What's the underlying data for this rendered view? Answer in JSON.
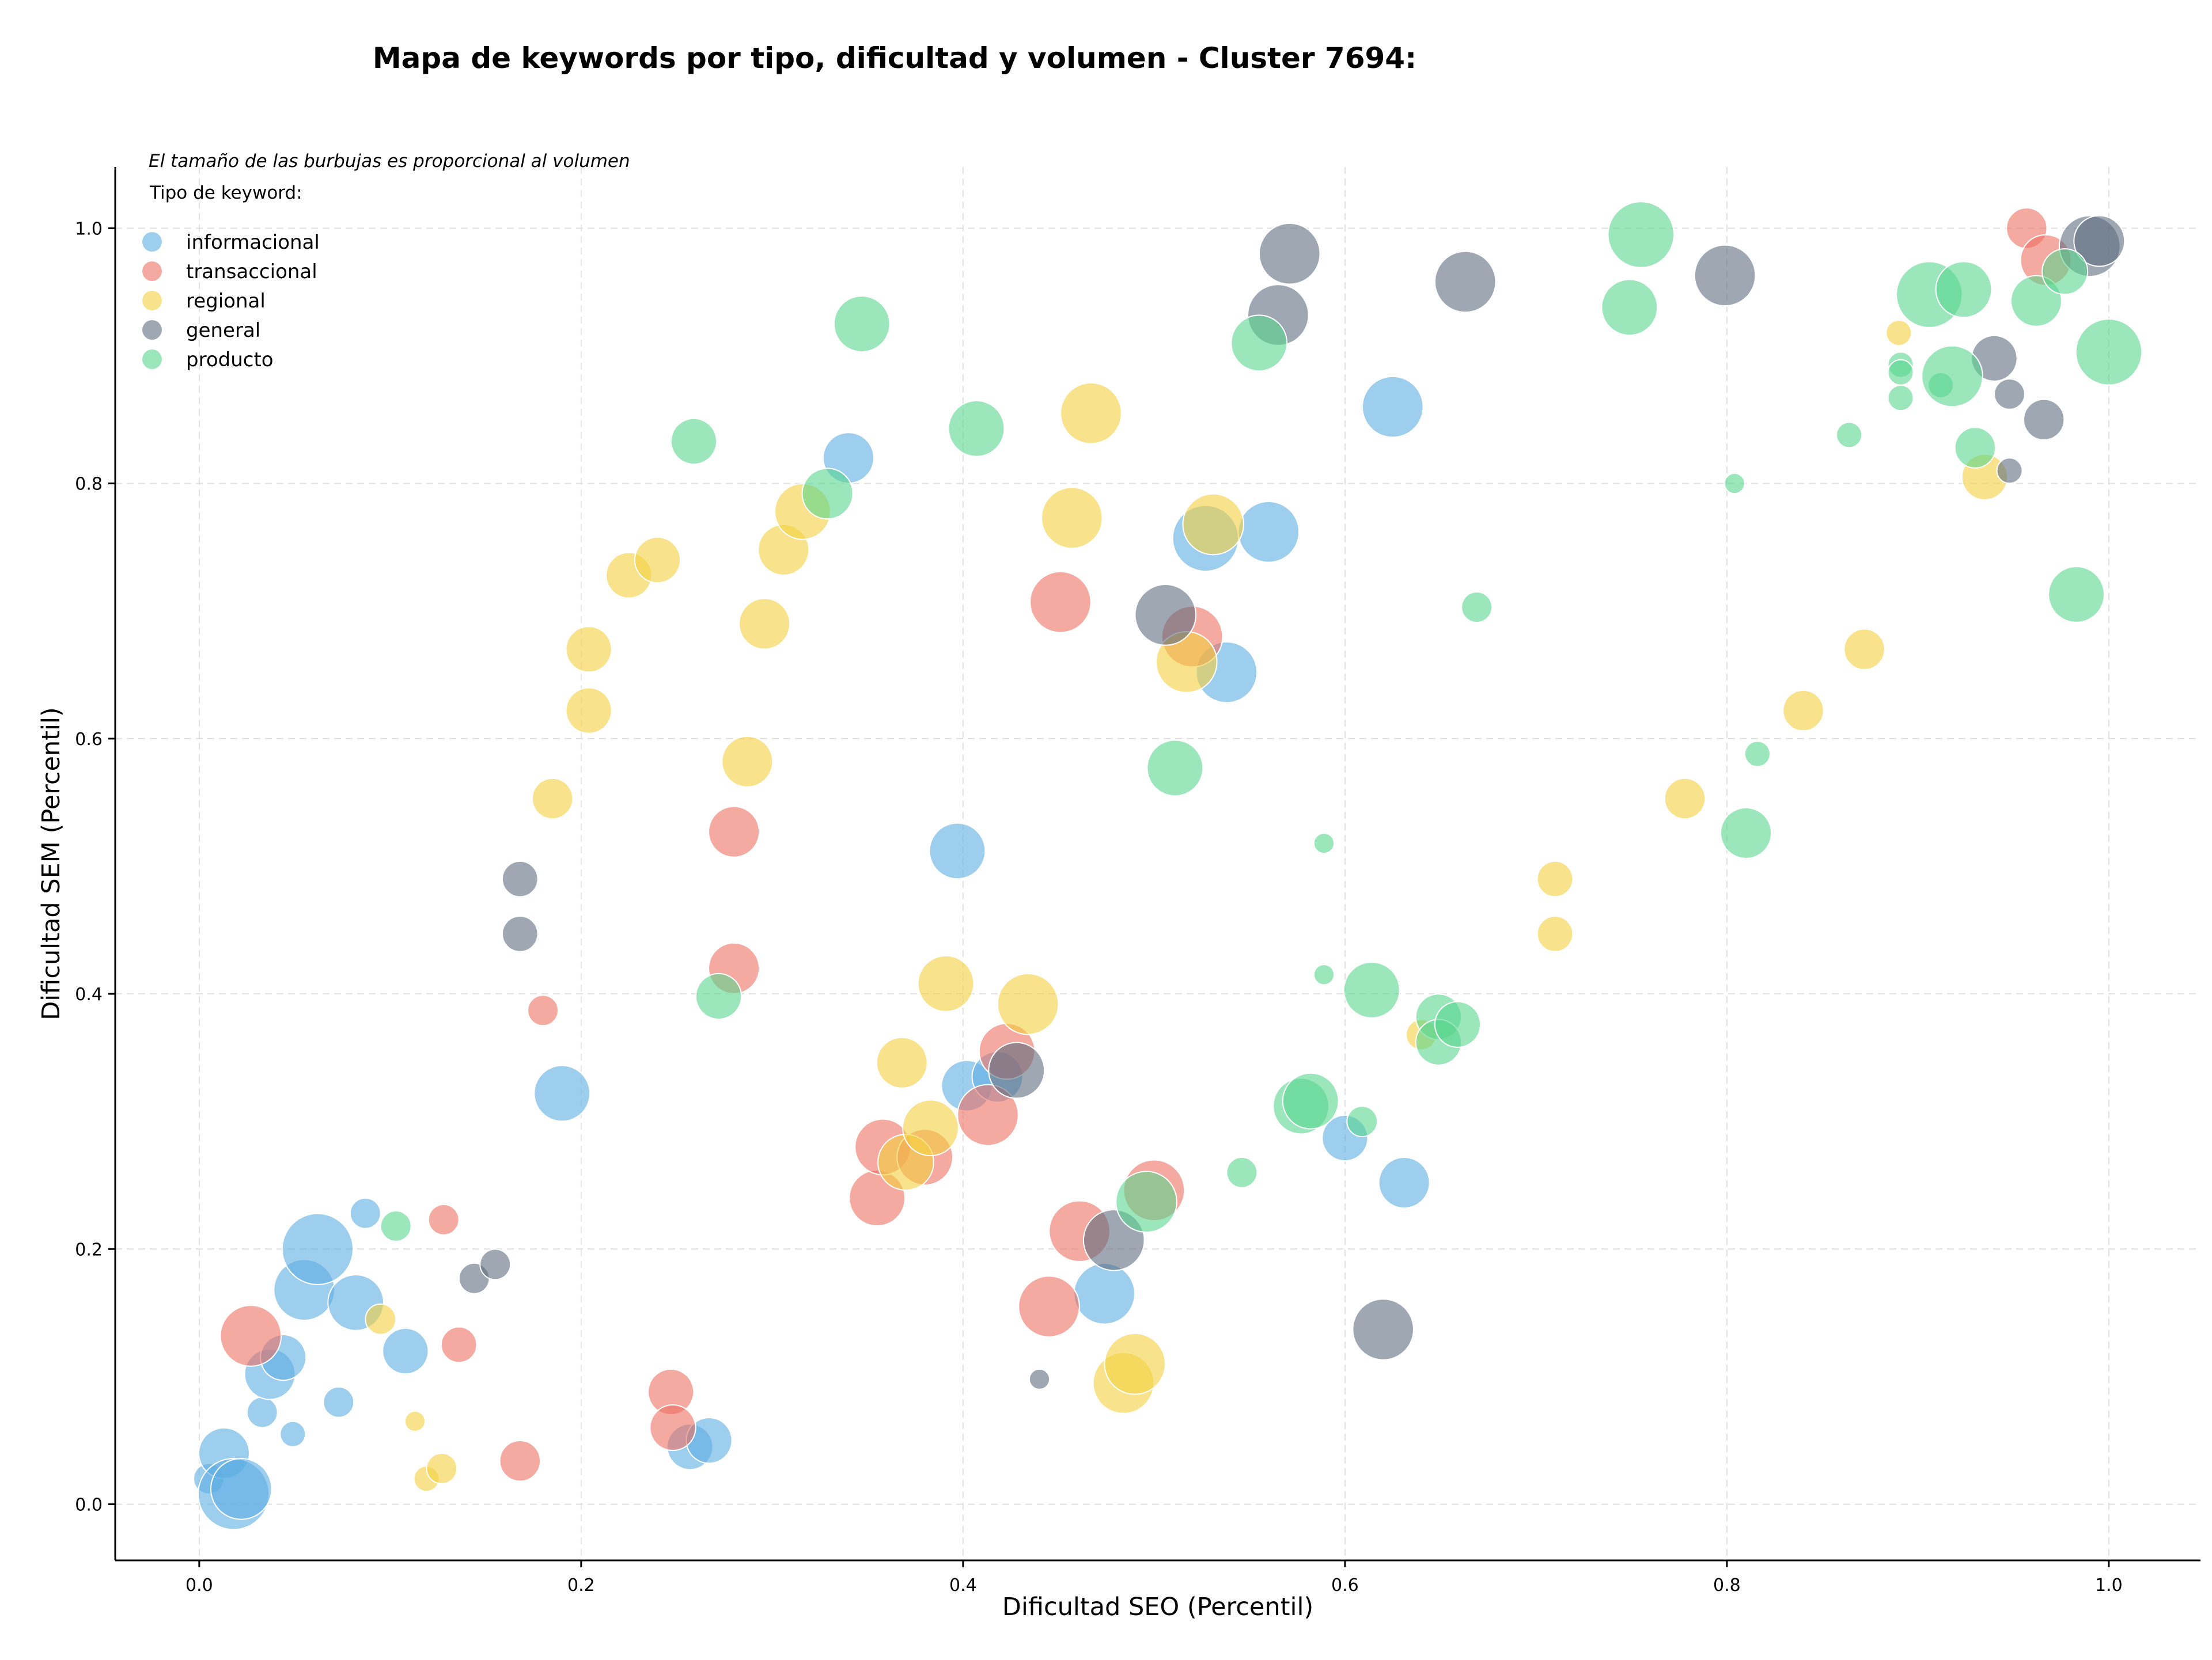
{
  "chart_data": {
    "type": "scatter",
    "title": "Mapa de keywords por tipo, dificultad y volumen - Cluster 7694:",
    "note": "El tamaño de las burbujas es proporcional al volumen",
    "xlabel": "Dificultad SEO (Percentil)",
    "ylabel": "Dificultad SEM (Percentil)",
    "xlim": [
      -0.044,
      1.048
    ],
    "ylim": [
      -0.044,
      1.048
    ],
    "xticks": [
      "0.0",
      "0.2",
      "0.4",
      "0.6",
      "0.8",
      "1.0"
    ],
    "yticks": [
      "0.0",
      "0.2",
      "0.4",
      "0.6",
      "0.8",
      "1.0"
    ],
    "grid": true,
    "legend": {
      "title": "Tipo de keyword:",
      "placement": "top-left"
    },
    "series": [
      {
        "name": "informacional",
        "color": "#5DADE2",
        "points": [
          [
            0.005,
            0.02,
            6
          ],
          [
            0.013,
            0.04,
            10
          ],
          [
            0.018,
            0.008,
            14
          ],
          [
            0.022,
            0.012,
            12
          ],
          [
            0.033,
            0.072,
            6
          ],
          [
            0.037,
            0.102,
            10
          ],
          [
            0.044,
            0.115,
            9
          ],
          [
            0.049,
            0.055,
            5
          ],
          [
            0.055,
            0.168,
            12
          ],
          [
            0.062,
            0.2,
            14
          ],
          [
            0.073,
            0.08,
            6
          ],
          [
            0.082,
            0.158,
            11
          ],
          [
            0.087,
            0.228,
            6
          ],
          [
            0.108,
            0.12,
            9
          ],
          [
            0.19,
            0.322,
            11
          ],
          [
            0.257,
            0.045,
            9
          ],
          [
            0.267,
            0.05,
            9
          ],
          [
            0.397,
            0.512,
            11
          ],
          [
            0.402,
            0.328,
            10
          ],
          [
            0.418,
            0.335,
            10
          ],
          [
            0.474,
            0.165,
            12
          ],
          [
            0.527,
            0.757,
            13
          ],
          [
            0.538,
            0.652,
            12
          ],
          [
            0.56,
            0.762,
            12
          ],
          [
            0.6,
            0.287,
            9
          ],
          [
            0.625,
            0.86,
            12
          ],
          [
            0.631,
            0.252,
            10
          ],
          [
            0.34,
            0.82,
            10
          ]
        ]
      },
      {
        "name": "transaccional",
        "color": "#EC7063",
        "points": [
          [
            0.027,
            0.132,
            12
          ],
          [
            0.128,
            0.223,
            6
          ],
          [
            0.136,
            0.125,
            7
          ],
          [
            0.168,
            0.034,
            8
          ],
          [
            0.18,
            0.387,
            6
          ],
          [
            0.247,
            0.088,
            9
          ],
          [
            0.248,
            0.06,
            9
          ],
          [
            0.28,
            0.527,
            10
          ],
          [
            0.28,
            0.42,
            10
          ],
          [
            0.355,
            0.24,
            11
          ],
          [
            0.358,
            0.28,
            11
          ],
          [
            0.38,
            0.272,
            11
          ],
          [
            0.413,
            0.305,
            12
          ],
          [
            0.423,
            0.355,
            11
          ],
          [
            0.445,
            0.155,
            12
          ],
          [
            0.451,
            0.707,
            12
          ],
          [
            0.461,
            0.214,
            12
          ],
          [
            0.5,
            0.246,
            12
          ],
          [
            0.52,
            0.68,
            12
          ],
          [
            0.957,
            1.0,
            8
          ],
          [
            0.967,
            0.975,
            10
          ]
        ]
      },
      {
        "name": "regional",
        "color": "#F4D03F",
        "points": [
          [
            0.095,
            0.145,
            6
          ],
          [
            0.113,
            0.065,
            4
          ],
          [
            0.119,
            0.02,
            5
          ],
          [
            0.127,
            0.028,
            6
          ],
          [
            0.185,
            0.553,
            8
          ],
          [
            0.204,
            0.67,
            9
          ],
          [
            0.204,
            0.622,
            9
          ],
          [
            0.225,
            0.728,
            9
          ],
          [
            0.24,
            0.74,
            9
          ],
          [
            0.287,
            0.582,
            10
          ],
          [
            0.296,
            0.69,
            10
          ],
          [
            0.306,
            0.748,
            10
          ],
          [
            0.316,
            0.778,
            11
          ],
          [
            0.368,
            0.346,
            10
          ],
          [
            0.37,
            0.268,
            11
          ],
          [
            0.383,
            0.295,
            11
          ],
          [
            0.391,
            0.408,
            11
          ],
          [
            0.434,
            0.392,
            12
          ],
          [
            0.457,
            0.773,
            12
          ],
          [
            0.467,
            0.855,
            12
          ],
          [
            0.484,
            0.095,
            12
          ],
          [
            0.49,
            0.11,
            12
          ],
          [
            0.517,
            0.66,
            12
          ],
          [
            0.531,
            0.768,
            12
          ],
          [
            0.64,
            0.368,
            6
          ],
          [
            0.71,
            0.49,
            7
          ],
          [
            0.71,
            0.447,
            7
          ],
          [
            0.778,
            0.553,
            8
          ],
          [
            0.84,
            0.622,
            8
          ],
          [
            0.872,
            0.67,
            8
          ],
          [
            0.89,
            0.918,
            5
          ],
          [
            0.935,
            0.805,
            9
          ]
        ]
      },
      {
        "name": "general",
        "color": "#5D6D7E",
        "points": [
          [
            0.144,
            0.177,
            6
          ],
          [
            0.155,
            0.188,
            6
          ],
          [
            0.168,
            0.49,
            7
          ],
          [
            0.168,
            0.447,
            7
          ],
          [
            0.44,
            0.098,
            4
          ],
          [
            0.428,
            0.34,
            11
          ],
          [
            0.479,
            0.207,
            12
          ],
          [
            0.506,
            0.697,
            12
          ],
          [
            0.565,
            0.932,
            12
          ],
          [
            0.571,
            0.98,
            12
          ],
          [
            0.62,
            0.137,
            12
          ],
          [
            0.663,
            0.958,
            12
          ],
          [
            0.799,
            0.963,
            12
          ],
          [
            0.94,
            0.898,
            9
          ],
          [
            0.948,
            0.87,
            6
          ],
          [
            0.948,
            0.81,
            5
          ],
          [
            0.966,
            0.85,
            8
          ],
          [
            0.99,
            0.986,
            12
          ],
          [
            0.995,
            0.99,
            10
          ]
        ]
      },
      {
        "name": "producto",
        "color": "#58D68D",
        "points": [
          [
            0.103,
            0.218,
            6
          ],
          [
            0.259,
            0.833,
            9
          ],
          [
            0.272,
            0.398,
            9
          ],
          [
            0.329,
            0.792,
            10
          ],
          [
            0.347,
            0.925,
            11
          ],
          [
            0.407,
            0.843,
            11
          ],
          [
            0.496,
            0.237,
            12
          ],
          [
            0.511,
            0.577,
            11
          ],
          [
            0.546,
            0.26,
            6
          ],
          [
            0.555,
            0.91,
            11
          ],
          [
            0.577,
            0.312,
            11
          ],
          [
            0.582,
            0.316,
            11
          ],
          [
            0.589,
            0.518,
            4
          ],
          [
            0.589,
            0.415,
            4
          ],
          [
            0.609,
            0.3,
            6
          ],
          [
            0.614,
            0.403,
            11
          ],
          [
            0.649,
            0.382,
            9
          ],
          [
            0.649,
            0.362,
            9
          ],
          [
            0.659,
            0.376,
            9
          ],
          [
            0.669,
            0.703,
            6
          ],
          [
            0.749,
            0.938,
            11
          ],
          [
            0.755,
            0.995,
            13
          ],
          [
            0.804,
            0.8,
            4
          ],
          [
            0.81,
            0.526,
            10
          ],
          [
            0.816,
            0.588,
            5
          ],
          [
            0.864,
            0.838,
            5
          ],
          [
            0.891,
            0.893,
            5
          ],
          [
            0.891,
            0.887,
            5
          ],
          [
            0.891,
            0.867,
            5
          ],
          [
            0.906,
            0.948,
            13
          ],
          [
            0.912,
            0.877,
            5
          ],
          [
            0.918,
            0.884,
            12
          ],
          [
            0.924,
            0.952,
            11
          ],
          [
            0.93,
            0.828,
            8
          ],
          [
            0.962,
            0.943,
            10
          ],
          [
            0.977,
            0.966,
            9
          ],
          [
            0.983,
            0.713,
            11
          ],
          [
            1.0,
            0.903,
            13
          ]
        ]
      }
    ]
  }
}
